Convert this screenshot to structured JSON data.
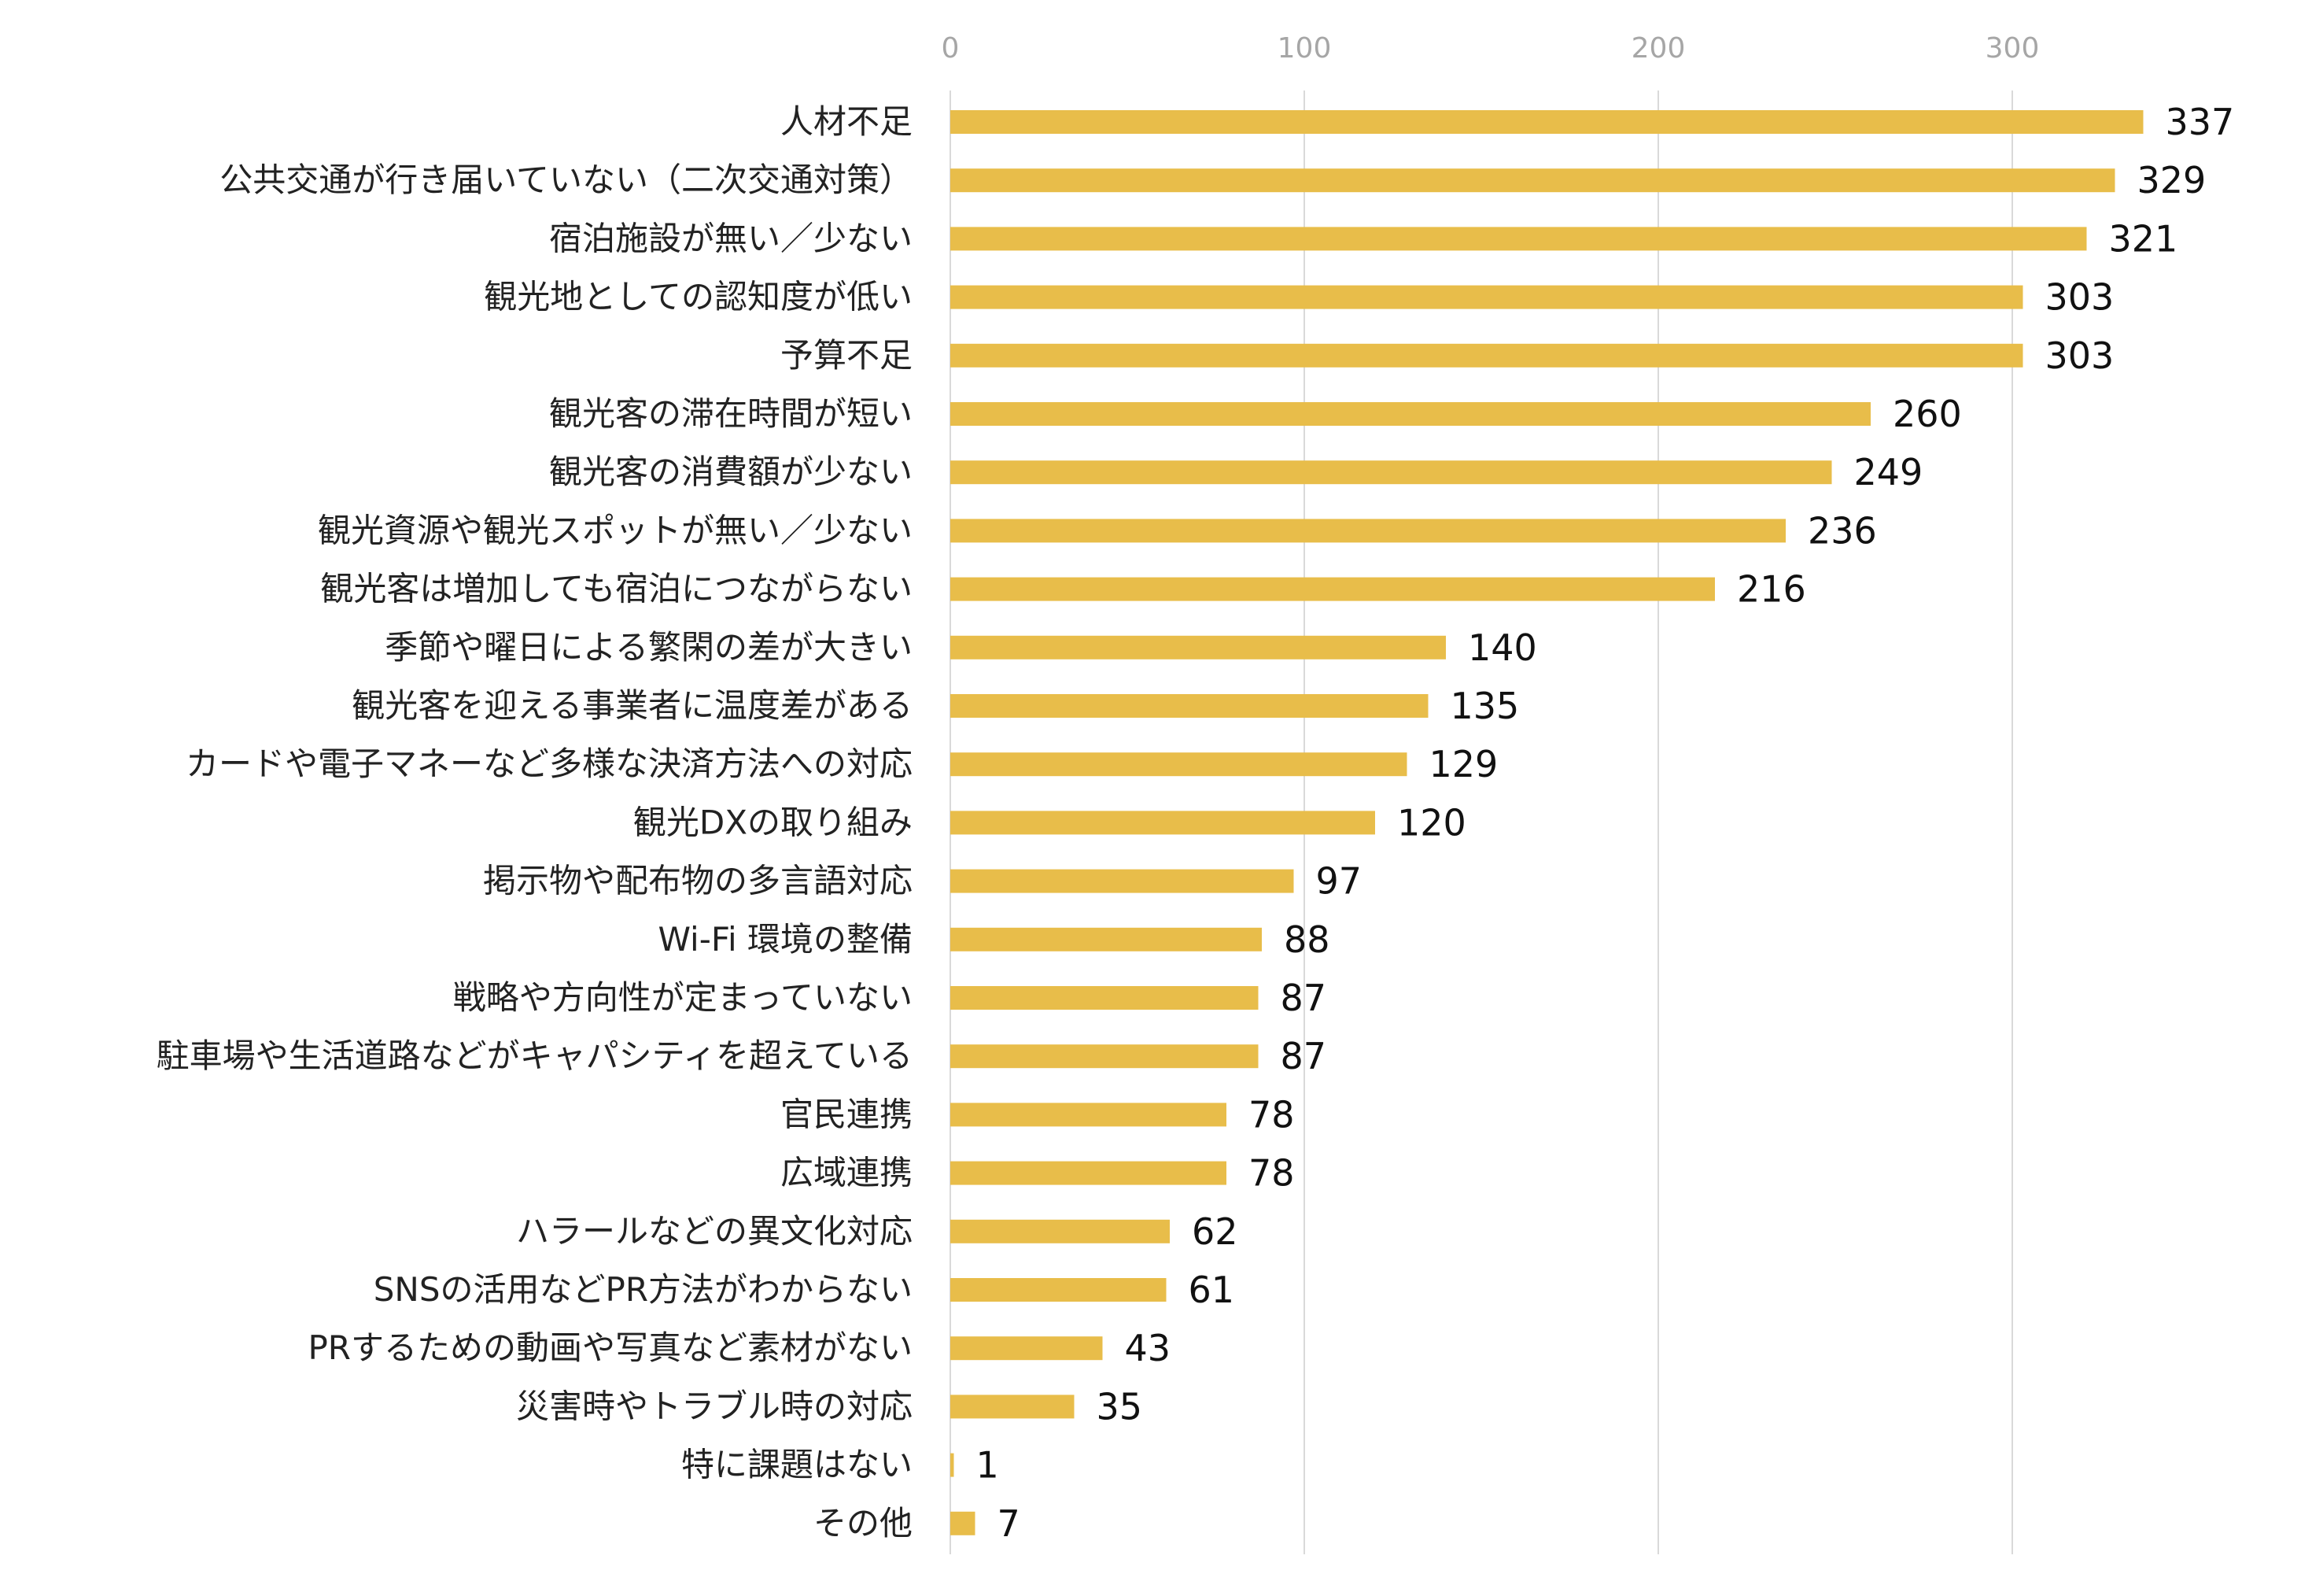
{
  "chart_data": {
    "type": "bar",
    "orientation": "horizontal",
    "title": "",
    "xlabel": "",
    "ylabel": "",
    "xlim": [
      0,
      350
    ],
    "ticks": [
      0,
      100,
      200,
      300
    ],
    "tick_position": "top",
    "grid": true,
    "legend": "none",
    "bar_color": "#e8bd4a",
    "categories": [
      "人材不足",
      "公共交通が行き届いていない（二次交通対策）",
      "宿泊施設が無い／少ない",
      "観光地としての認知度が低い",
      "予算不足",
      "観光客の滞在時間が短い",
      "観光客の消費額が少ない",
      "観光資源や観光スポットが無い／少ない",
      "観光客は増加しても宿泊につながらない",
      "季節や曜日による繁閑の差が大きい",
      "観光客を迎える事業者に温度差がある",
      "カードや電子マネーなど多様な決済方法への対応",
      "観光DXの取り組み",
      "掲示物や配布物の多言語対応",
      "Wi-Fi 環境の整備",
      "戦略や方向性が定まっていない",
      "駐車場や生活道路などがキャパシティを超えている",
      "官民連携",
      "広域連携",
      "ハラールなどの異文化対応",
      "SNSの活用などPR方法がわからない",
      "PRするための動画や写真など素材がない",
      "災害時やトラブル時の対応",
      "特に課題はない",
      "その他"
    ],
    "values": [
      337,
      329,
      321,
      303,
      303,
      260,
      249,
      236,
      216,
      140,
      135,
      129,
      120,
      97,
      88,
      87,
      87,
      78,
      78,
      62,
      61,
      43,
      35,
      1,
      7
    ]
  }
}
